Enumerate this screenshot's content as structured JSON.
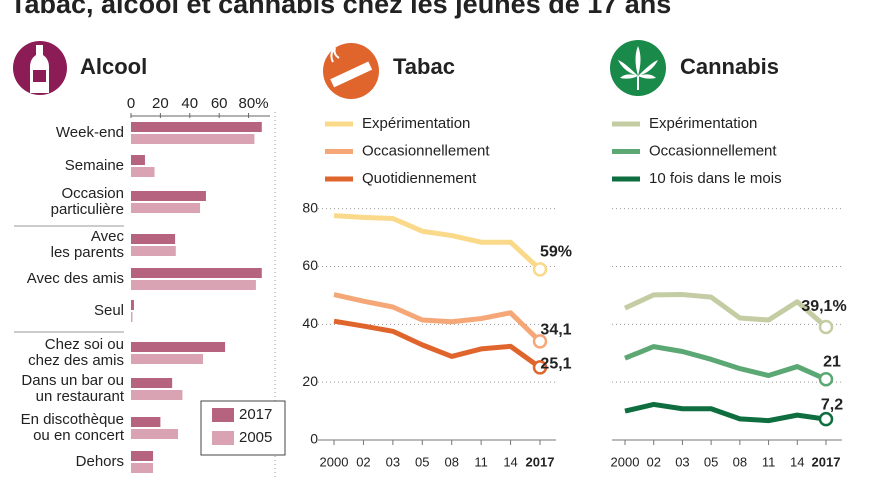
{
  "title": "Tabac, alcool et cannabis chez les jeunes de 17 ans",
  "chart_data": [
    {
      "type": "hbar",
      "title": "Alcool",
      "title_color": "#8b1c55",
      "categories": [
        "Week-end",
        "Semaine",
        "Occasion\nparticulière",
        "Avec\nles parents",
        "Avec des amis",
        "Seul",
        "Chez soi ou\nchez des amis",
        "Dans un bar ou\nun restaurant",
        "En discothèque\nou en concert",
        "Dehors"
      ],
      "series": [
        {
          "name": "2017",
          "color": "#b5637e",
          "values": [
            89,
            9.5,
            51,
            30,
            89,
            2,
            64,
            28,
            20,
            15
          ]
        },
        {
          "name": "2005",
          "color": "#d9a3b3",
          "values": [
            84,
            16,
            47,
            30.5,
            85,
            1,
            49,
            35,
            32,
            15
          ]
        }
      ],
      "xlim": [
        0,
        98
      ],
      "xticks": [
        0,
        20,
        40,
        60,
        {
          "value": 80,
          "label": "80%"
        }
      ]
    },
    {
      "type": "line",
      "title": "Tabac",
      "title_color": "#e0652d",
      "categories": [
        "2000",
        "02",
        "03",
        "05",
        "08",
        "11",
        "14",
        "2017"
      ],
      "series": [
        {
          "name": "Expérimentation",
          "color": "#fbd98a",
          "values": [
            77.6,
            77.0,
            76.6,
            72.2,
            70.7,
            68.4,
            68.4,
            59
          ],
          "end_label": "59%"
        },
        {
          "name": "Occasionnellement",
          "color": "#f5a778",
          "values": [
            50.3,
            48,
            46,
            41.5,
            40.9,
            42,
            44,
            34.1
          ],
          "end_label": "34,1"
        },
        {
          "name": "Quotidiennement",
          "color": "#e0652d",
          "values": [
            41.1,
            39.4,
            37.6,
            32.9,
            28.9,
            31.5,
            32.4,
            25.1
          ],
          "end_label": "25,1"
        }
      ],
      "ylim": [
        0,
        83
      ],
      "yticks": [
        0,
        20,
        40,
        60,
        80
      ]
    },
    {
      "type": "line",
      "title": "Cannabis",
      "title_color": "#1a8a4a",
      "categories": [
        "2000",
        "02",
        "03",
        "05",
        "08",
        "11",
        "14",
        "2017"
      ],
      "series": [
        {
          "name": "Expérimentation",
          "color": "#c4cca3",
          "values": [
            45.6,
            50.2,
            50.3,
            49.4,
            42.2,
            41.5,
            47.8,
            39.1
          ],
          "end_label": "39,1%"
        },
        {
          "name": "Occasionnellement",
          "color": "#5ba874",
          "values": [
            28.3,
            32.3,
            30.6,
            27.9,
            24.7,
            22.3,
            25.4,
            21
          ],
          "end_label": "21"
        },
        {
          "name": "10 fois dans le mois",
          "color": "#0e6e3f",
          "values": [
            10,
            12.3,
            10.8,
            10.8,
            7.3,
            6.7,
            8.6,
            7.2
          ],
          "end_label": "7,2"
        }
      ],
      "ylim": [
        0,
        83
      ],
      "yticks": [
        0,
        20,
        40,
        60,
        80
      ]
    }
  ]
}
